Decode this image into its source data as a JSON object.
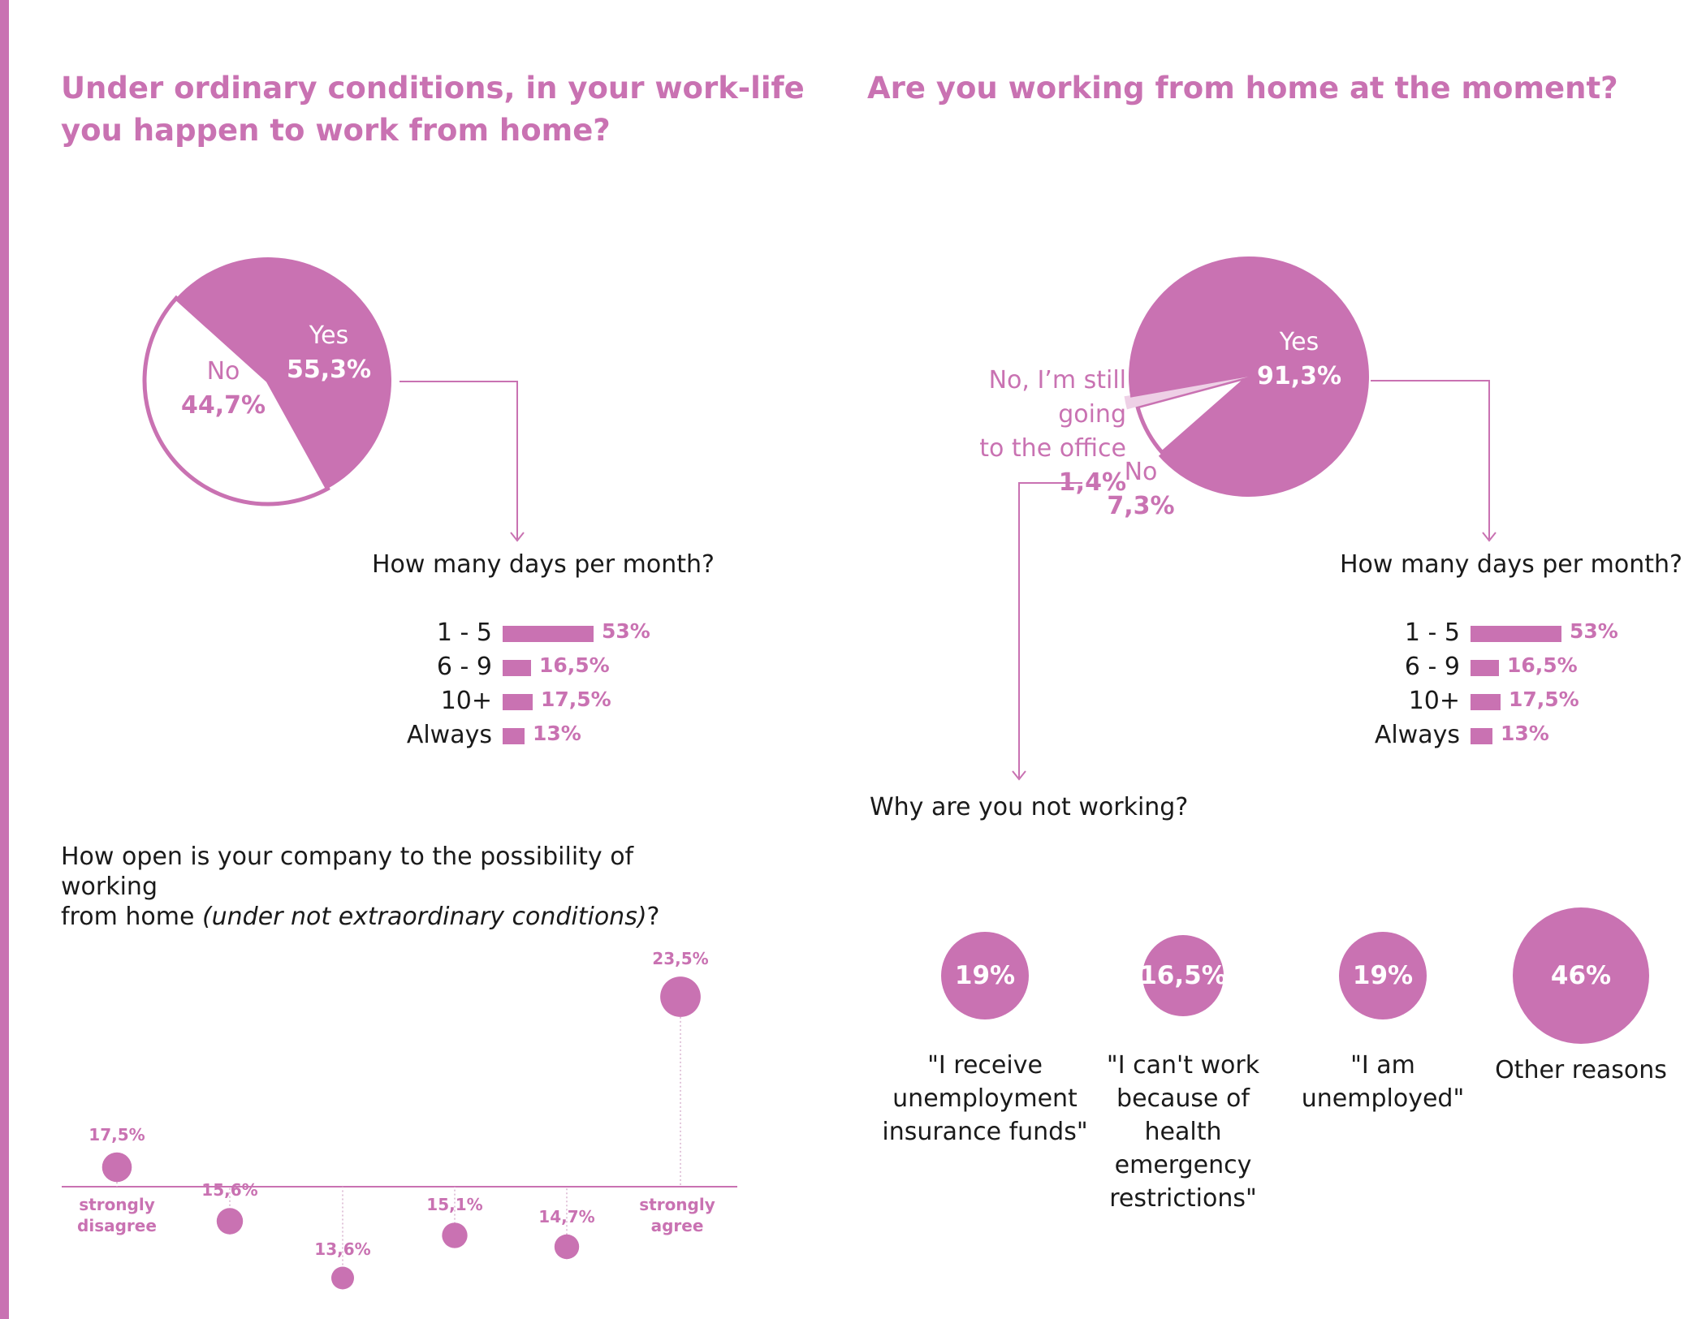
{
  "colors": {
    "accent": "#c972b2",
    "accent_light": "#eed0e6",
    "text": "#1a1a1a"
  },
  "left": {
    "title_line1": "Under ordinary conditions, in your work-life",
    "title_line2": "you happen to work from home?",
    "pie": {
      "yes_label": "Yes",
      "yes_value": "55,3%",
      "no_label": "No",
      "no_value": "44,7%"
    },
    "days_question": "How many days per month?",
    "days": [
      {
        "label": "1 - 5",
        "value": "53%"
      },
      {
        "label": "6 - 9",
        "value": "16,5%"
      },
      {
        "label": "10+",
        "value": "17,5%"
      },
      {
        "label": "Always",
        "value": "13%"
      }
    ],
    "openness_question_line1": "How open is your company to the possibility of working",
    "openness_question_line2_pre": "from home ",
    "openness_question_line2_italic": "(under not extraordinary conditions)",
    "openness_question_line2_post": "?",
    "axis_left_line1": "strongly",
    "axis_left_line2": "disagree",
    "axis_right_line1": "strongly",
    "axis_right_line2": "agree"
  },
  "right": {
    "title": "Are you working from home at the moment?",
    "pie": {
      "yes_label": "Yes",
      "yes_value": "91,3%",
      "no_label": "No",
      "no_value": "7,3%",
      "office_line1": "No, I’m still going",
      "office_line2_pre": "to the office ",
      "office_line2_value": "1,4%"
    },
    "days_question": "How many days per month?",
    "days": [
      {
        "label": "1 - 5",
        "value": "53%"
      },
      {
        "label": "6 - 9",
        "value": "16,5%"
      },
      {
        "label": "10+",
        "value": "17,5%"
      },
      {
        "label": "Always",
        "value": "13%"
      }
    ],
    "why_question": "Why are you not working?",
    "reasons": [
      {
        "value": "19%",
        "line1": "\"I receive",
        "line2": "unemployment",
        "line3": "insurance funds\"",
        "line4": ""
      },
      {
        "value": "16,5%",
        "line1": "\"I can't work",
        "line2": "because of health",
        "line3": "emergency",
        "line4": "restrictions\""
      },
      {
        "value": "19%",
        "line1": "\"I am",
        "line2": "unemployed\"",
        "line3": "",
        "line4": ""
      },
      {
        "value": "46%",
        "line1": "Other reasons",
        "line2": "",
        "line3": "",
        "line4": ""
      }
    ]
  },
  "chart_data": [
    {
      "type": "pie",
      "title": "Under ordinary conditions, in your work-life you happen to work from home?",
      "slices": [
        {
          "label": "Yes",
          "value": 55.3
        },
        {
          "label": "No",
          "value": 44.7
        }
      ]
    },
    {
      "type": "bar",
      "title": "How many days per month?",
      "categories": [
        "1 - 5",
        "6 - 9",
        "10+",
        "Always"
      ],
      "values": [
        53,
        16.5,
        17.5,
        13
      ]
    },
    {
      "type": "scatter",
      "title": "How open is your company to the possibility of working from home (under not extraordinary conditions)?",
      "categories": [
        "1",
        "2",
        "3",
        "4",
        "5",
        "6"
      ],
      "values": [
        17.5,
        15.6,
        13.6,
        15.1,
        14.7,
        23.5
      ],
      "value_labels": [
        "17,5%",
        "15,6%",
        "13,6%",
        "15,1%",
        "14,7%",
        "23,5%"
      ],
      "x_endpoints": [
        "strongly disagree",
        "strongly agree"
      ]
    },
    {
      "type": "pie",
      "title": "Are you working from home at the moment?",
      "slices": [
        {
          "label": "Yes",
          "value": 91.3
        },
        {
          "label": "No",
          "value": 7.3
        },
        {
          "label": "No, I’m still going to the office",
          "value": 1.4
        }
      ]
    },
    {
      "type": "bar",
      "title": "How many days per month?",
      "categories": [
        "1 - 5",
        "6 - 9",
        "10+",
        "Always"
      ],
      "values": [
        53,
        16.5,
        17.5,
        13
      ]
    },
    {
      "type": "scatter",
      "title": "Why are you not working?",
      "categories": [
        "\"I receive unemployment insurance funds\"",
        "\"I can't work because of health emergency restrictions\"",
        "\"I am unemployed\"",
        "Other reasons"
      ],
      "values": [
        19,
        16.5,
        19,
        46
      ],
      "value_labels": [
        "19%",
        "16,5%",
        "19%",
        "46%"
      ]
    }
  ]
}
